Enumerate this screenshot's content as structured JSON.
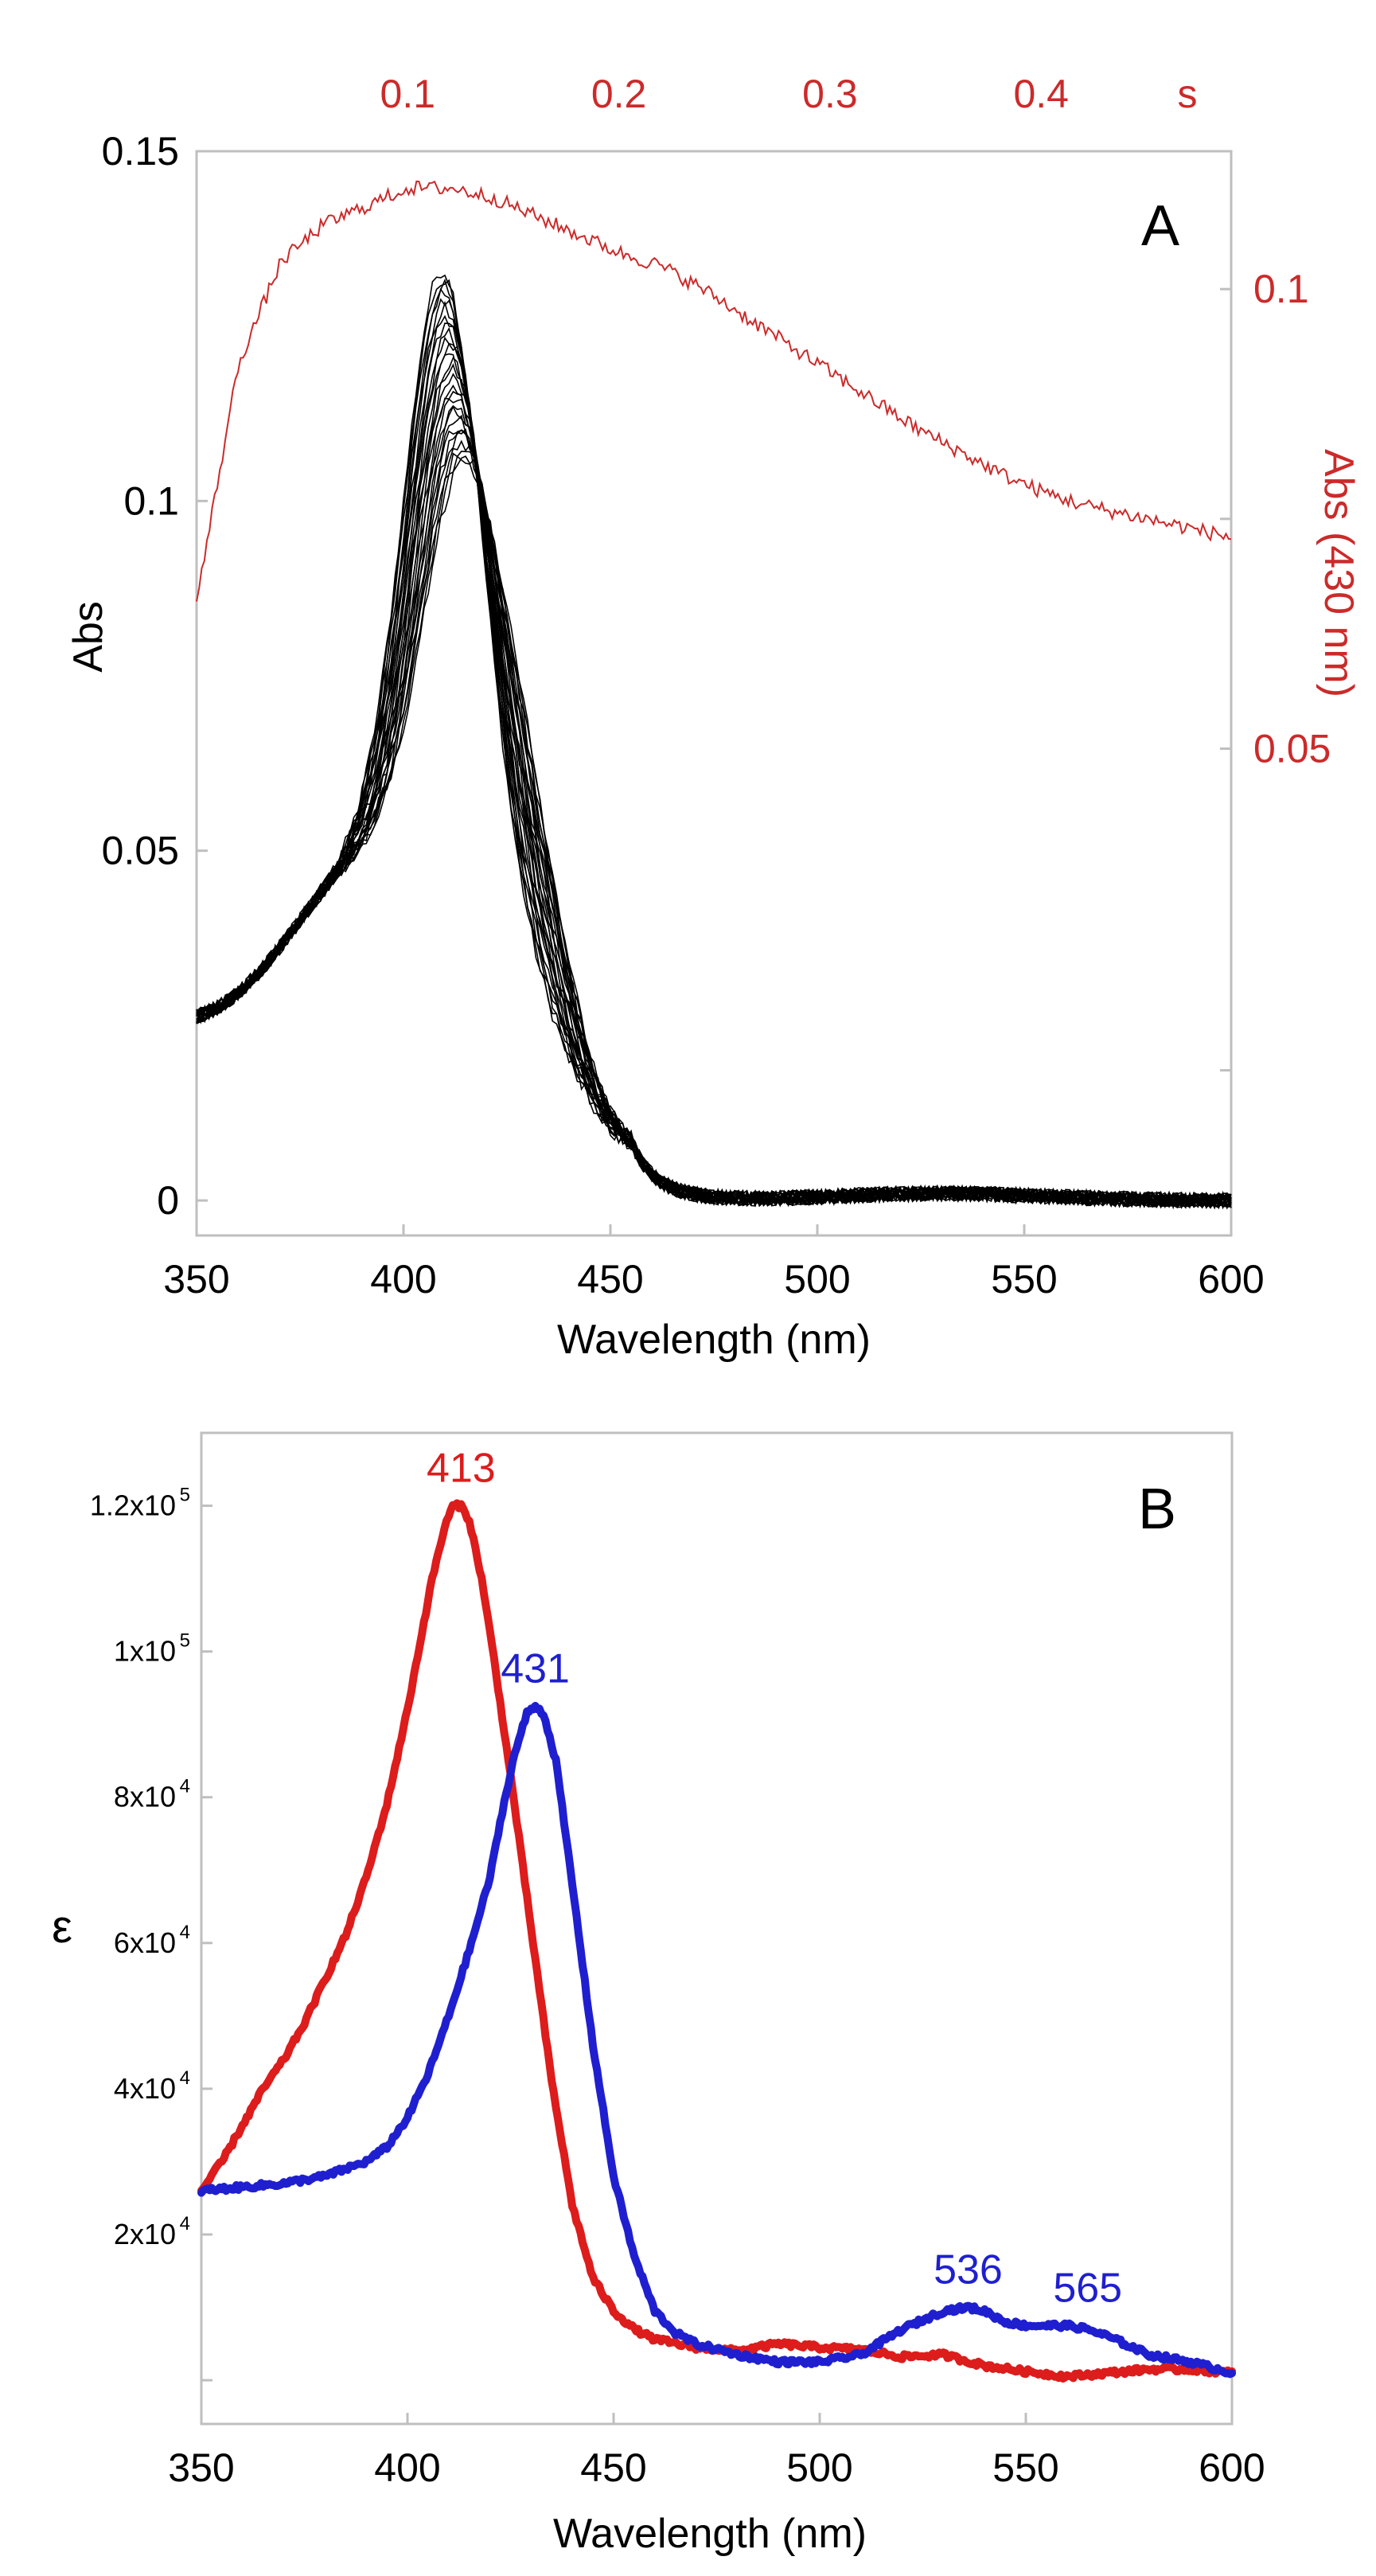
{
  "colors": {
    "frame": "#bfbfbf",
    "black": "#000000",
    "red": "#cc2a2a",
    "red_bold": "#dd1c1c",
    "blue": "#1f1fd0"
  },
  "chart_data": [
    {
      "panel_label": "A",
      "type": "line",
      "xlabel": "Wavelength (nm)",
      "ylabel": "Abs",
      "y2label": "Abs (430 nm)",
      "xlim": [
        350,
        600
      ],
      "ylim": [
        -0.005,
        0.15
      ],
      "x_ticks": [
        350,
        400,
        450,
        500,
        550,
        600
      ],
      "x_tick_labels": [
        "350",
        "400",
        "450",
        "500",
        "550",
        "600"
      ],
      "y_ticks": [
        0,
        0.05,
        0.1,
        0.15
      ],
      "y_tick_labels": [
        "0",
        "0.05",
        "0.1",
        "0.15"
      ],
      "top_axis": {
        "tick_values": [
          0.1,
          0.2,
          0.3,
          0.4
        ],
        "tick_labels": [
          "0.1",
          "0.2",
          "0.3",
          "0.4"
        ],
        "unit_label": "s",
        "range": [
          0,
          0.49
        ]
      },
      "right_axis": {
        "tick_values": [
          0.05,
          0.1
        ],
        "tick_labels": [
          "0.05",
          "0.1"
        ],
        "range": [
          0.005,
          0.115
        ]
      },
      "spectra_family": {
        "count": 28,
        "first_peak_nm": 410,
        "first_peak_abs": 0.132,
        "last_peak_nm": 414,
        "last_peak_abs": 0.101,
        "abs_at_350": 0.022,
        "abs_near_530": 0.001
      },
      "kinetic_trace": {
        "axis": "top-right",
        "x": [
          0,
          0.02,
          0.04,
          0.06,
          0.08,
          0.1,
          0.12,
          0.14,
          0.16,
          0.18,
          0.2,
          0.22,
          0.24,
          0.26,
          0.28,
          0.3,
          0.32,
          0.34,
          0.36,
          0.38,
          0.4,
          0.42,
          0.44,
          0.46,
          0.48,
          0.49
        ],
        "y": [
          0.066,
          0.092,
          0.103,
          0.107,
          0.109,
          0.111,
          0.111,
          0.11,
          0.108,
          0.106,
          0.104,
          0.1025,
          0.1,
          0.097,
          0.094,
          0.091,
          0.088,
          0.085,
          0.0825,
          0.08,
          0.078,
          0.0765,
          0.0755,
          0.0745,
          0.0735,
          0.073
        ]
      }
    },
    {
      "panel_label": "B",
      "type": "line",
      "xlabel": "Wavelength (nm)",
      "ylabel": "ε",
      "xlim": [
        350,
        600
      ],
      "ylim": [
        -6000,
        130000
      ],
      "x_ticks": [
        350,
        400,
        450,
        500,
        550,
        600
      ],
      "x_tick_labels": [
        "350",
        "400",
        "450",
        "500",
        "550",
        "600"
      ],
      "y_ticks": [
        20000,
        40000,
        60000,
        80000,
        100000,
        120000
      ],
      "y_tick_mantissa": [
        "2x10",
        "4x10",
        "6x10",
        "8x10",
        "1x10",
        "1.2x10"
      ],
      "y_tick_exponent": [
        "4",
        "4",
        "4",
        "4",
        "5",
        "5"
      ],
      "series": [
        {
          "color": "#dd1c1c",
          "x": [
            350,
            355,
            360,
            365,
            370,
            375,
            380,
            385,
            390,
            395,
            400,
            403,
            406,
            409,
            411,
            413,
            415,
            418,
            421,
            425,
            430,
            435,
            440,
            445,
            450,
            455,
            460,
            470,
            480,
            490,
            500,
            510,
            520,
            530,
            540,
            550,
            560,
            570,
            580,
            590,
            600
          ],
          "y": [
            26000,
            30000,
            35000,
            40000,
            44000,
            49000,
            55000,
            61000,
            69000,
            79000,
            92000,
            101000,
            110000,
            117000,
            120000,
            120000,
            118000,
            110000,
            99000,
            83000,
            62000,
            41000,
            24000,
            14000,
            9500,
            7000,
            5600,
            4500,
            4000,
            5000,
            4500,
            4200,
            3200,
            3500,
            2000,
            1200,
            500,
            1000,
            1500,
            1500,
            1000
          ]
        },
        {
          "color": "#1f1fd0",
          "x": [
            350,
            360,
            370,
            380,
            390,
            395,
            400,
            405,
            410,
            415,
            420,
            423,
            426,
            429,
            431,
            433,
            436,
            440,
            445,
            450,
            455,
            460,
            465,
            470,
            480,
            490,
            500,
            510,
            520,
            530,
            536,
            540,
            545,
            550,
            555,
            560,
            565,
            570,
            580,
            590,
            600
          ],
          "y": [
            26000,
            26500,
            27000,
            28000,
            30000,
            32000,
            36000,
            42000,
            50000,
            59000,
            69000,
            78000,
            86000,
            91500,
            92500,
            91500,
            85000,
            68000,
            46000,
            28000,
            17000,
            9500,
            6500,
            5000,
            3500,
            2500,
            2500,
            3500,
            7000,
            9500,
            10000,
            9500,
            8000,
            7500,
            7500,
            7500,
            7000,
            6000,
            3500,
            2500,
            1000
          ]
        }
      ],
      "annotations": [
        {
          "text": "413",
          "color": "#dd1c1c",
          "x": 413,
          "y": 120000
        },
        {
          "text": "431",
          "color": "#1f1fd0",
          "x": 431,
          "y": 92500
        },
        {
          "text": "536",
          "color": "#1f1fd0",
          "x": 536,
          "y": 10000
        },
        {
          "text": "565",
          "color": "#1f1fd0",
          "x": 565,
          "y": 7500
        }
      ]
    }
  ]
}
